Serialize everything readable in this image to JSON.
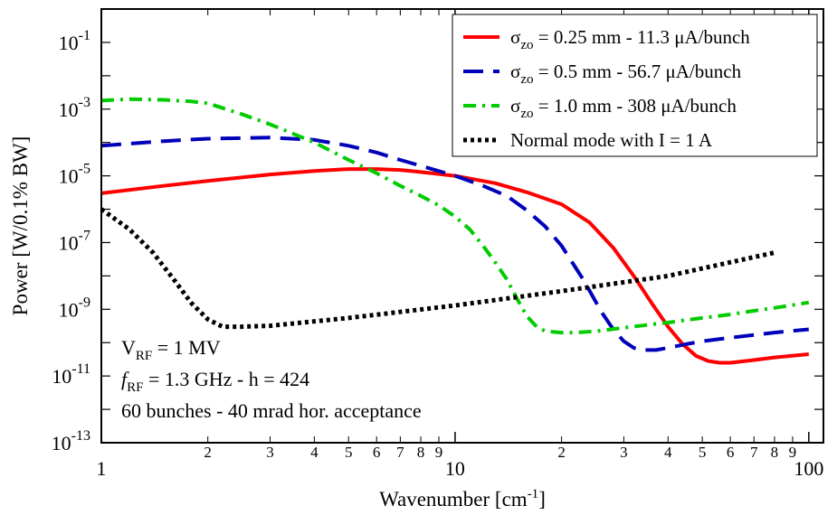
{
  "chart_data": {
    "type": "line",
    "title": "",
    "xlabel": "Wavenumber [cm",
    "xlabel_sup": "-1",
    "xlabel_end": "]",
    "ylabel": "Power [W/0.1% BW]",
    "xscale": "log",
    "yscale": "log",
    "xlim": [
      1,
      110
    ],
    "ylim": [
      1e-13,
      1
    ],
    "grid": false,
    "legend_position": "top-right",
    "x_major_ticks": [
      {
        "value": 1,
        "label": "1"
      },
      {
        "value": 10,
        "label": "10"
      },
      {
        "value": 100,
        "label": "100"
      }
    ],
    "x_minor_ticks": [
      {
        "value": 2,
        "label": "2"
      },
      {
        "value": 3,
        "label": "3"
      },
      {
        "value": 4,
        "label": "4"
      },
      {
        "value": 5,
        "label": "5"
      },
      {
        "value": 6,
        "label": "6"
      },
      {
        "value": 7,
        "label": "7"
      },
      {
        "value": 8,
        "label": "8"
      },
      {
        "value": 9,
        "label": "9"
      },
      {
        "value": 20,
        "label": "2"
      },
      {
        "value": 30,
        "label": "3"
      },
      {
        "value": 40,
        "label": "4"
      },
      {
        "value": 50,
        "label": "5"
      },
      {
        "value": 60,
        "label": "6"
      },
      {
        "value": 70,
        "label": "7"
      },
      {
        "value": 80,
        "label": "8"
      },
      {
        "value": 90,
        "label": "9"
      }
    ],
    "y_ticks": [
      {
        "value": 0.1,
        "base": "10",
        "exp": "-1"
      },
      {
        "value": 0.001,
        "base": "10",
        "exp": "-3"
      },
      {
        "value": 1e-05,
        "base": "10",
        "exp": "-5"
      },
      {
        "value": 1e-07,
        "base": "10",
        "exp": "-7"
      },
      {
        "value": 1e-09,
        "base": "10",
        "exp": "-9"
      },
      {
        "value": 1e-11,
        "base": "10",
        "exp": "-11"
      },
      {
        "value": 1e-13,
        "base": "10",
        "exp": "-13"
      }
    ],
    "series": [
      {
        "legend_parts": [
          "σ",
          "zo",
          " = 0.25 mm - 11.3 μA/bunch"
        ],
        "color": "#ff0000",
        "dash": "solid",
        "x": [
          1,
          1.5,
          2,
          3,
          4,
          5,
          6,
          7,
          8,
          10,
          13,
          16,
          20,
          24,
          28,
          32,
          36,
          40,
          44,
          48,
          52,
          56,
          60,
          70,
          80,
          100
        ],
        "y": [
          3e-06,
          5e-06,
          7e-06,
          1.1e-05,
          1.4e-05,
          1.6e-05,
          1.6e-05,
          1.5e-05,
          1.3e-05,
          1e-05,
          6e-06,
          3.2e-06,
          1.4e-06,
          4e-07,
          7e-08,
          1e-08,
          1.5e-09,
          3e-10,
          9e-11,
          4e-11,
          2.8e-11,
          2.5e-11,
          2.5e-11,
          3e-11,
          3.6e-11,
          4.5e-11
        ]
      },
      {
        "legend_parts": [
          "σ",
          "zo",
          " = 0.5 mm - 56.7 μA/bunch"
        ],
        "color": "#0000bb",
        "dash": "dashed",
        "x": [
          1,
          1.5,
          2,
          3,
          4,
          5,
          6,
          7,
          8,
          10,
          12,
          14,
          16,
          18,
          20,
          23,
          26,
          28,
          30,
          32,
          34,
          37,
          40,
          45,
          50,
          60,
          70,
          80,
          100
        ],
        "y": [
          8e-05,
          0.00011,
          0.00013,
          0.00014,
          0.00012,
          8e-05,
          5e-05,
          3e-05,
          2e-05,
          1e-05,
          5e-06,
          2.5e-06,
          9e-07,
          3e-07,
          8e-08,
          8e-09,
          8e-10,
          2.5e-10,
          1.1e-10,
          7e-11,
          6e-11,
          6e-11,
          7e-11,
          9e-11,
          1.1e-10,
          1.4e-10,
          1.7e-10,
          2e-10,
          2.5e-10
        ]
      },
      {
        "legend_parts": [
          "σ",
          "zo",
          " = 1.0 mm - 308 μA/bunch"
        ],
        "color": "#00cc00",
        "dash": "dashdot",
        "x": [
          1,
          1.2,
          1.5,
          1.8,
          2,
          2.5,
          3,
          3.5,
          4,
          5,
          6,
          7,
          8,
          9,
          10,
          11,
          12,
          13,
          14,
          15,
          16,
          17,
          18,
          20,
          22,
          25,
          30,
          40,
          50,
          60,
          70,
          80,
          100
        ],
        "y": [
          0.0018,
          0.002,
          0.0019,
          0.0017,
          0.0015,
          0.0007,
          0.00035,
          0.00018,
          0.0001,
          3e-05,
          1.2e-05,
          5e-06,
          2.5e-06,
          1.3e-06,
          6e-07,
          2.5e-07,
          8e-08,
          2.5e-08,
          8e-09,
          2e-09,
          6e-10,
          3e-10,
          2.2e-10,
          2e-10,
          2e-10,
          2.2e-10,
          2.8e-10,
          4e-10,
          5.5e-10,
          7e-10,
          9e-10,
          1.1e-09,
          1.6e-09
        ]
      },
      {
        "legend_parts": [
          "Normal mode with I = 1 A",
          "",
          ""
        ],
        "color": "#000000",
        "dash": "dotted",
        "x": [
          1,
          1.2,
          1.4,
          1.6,
          1.8,
          2,
          2.2,
          2.5,
          3,
          5,
          10,
          20,
          40,
          80
        ],
        "y": [
          1e-06,
          2.5e-07,
          5e-08,
          8e-09,
          1.5e-09,
          5e-10,
          3e-10,
          3e-10,
          3.2e-10,
          5.5e-10,
          1.3e-09,
          3.5e-09,
          1e-08,
          5e-08
        ]
      }
    ],
    "annotations": [
      {
        "parts": [
          "V",
          "RF",
          " = 1 MV"
        ],
        "italic_first": false
      },
      {
        "parts": [
          "f",
          "RF",
          " = 1.3 GHz - h = 424"
        ],
        "italic_first": true
      },
      {
        "parts": [
          "60 bunches - 40 mrad hor. acceptance",
          "",
          ""
        ],
        "italic_first": false
      }
    ]
  }
}
